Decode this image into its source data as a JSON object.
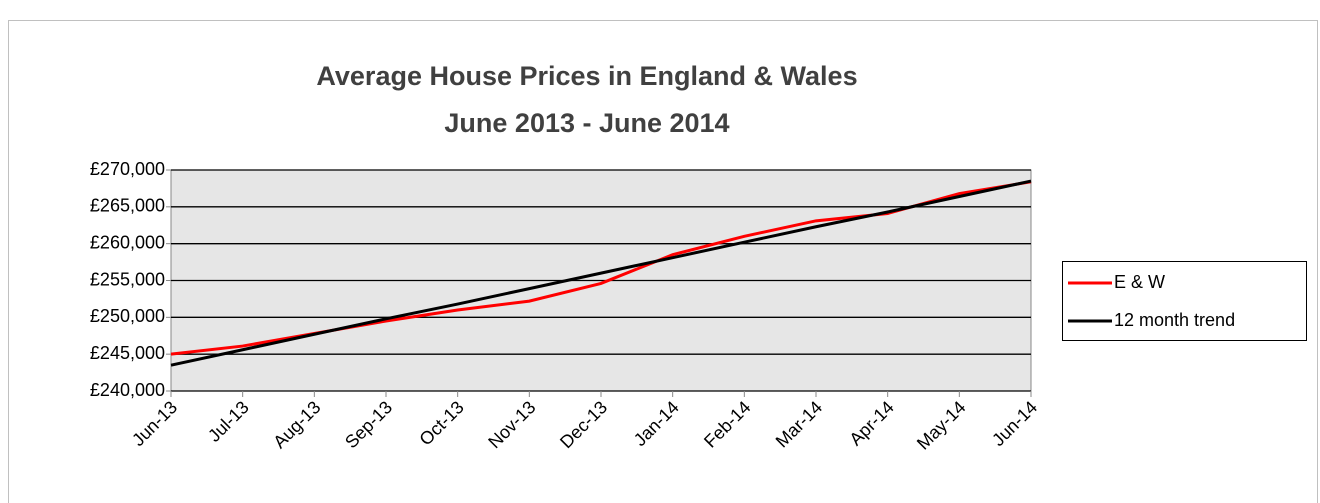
{
  "chart_data": {
    "type": "line",
    "title": "Average House Prices in England & Wales",
    "subtitle": "June 2013 - June 2014",
    "categories": [
      "Jun-13",
      "Jul-13",
      "Aug-13",
      "Sep-13",
      "Oct-13",
      "Nov-13",
      "Dec-13",
      "Jan-14",
      "Feb-14",
      "Mar-14",
      "Apr-14",
      "May-14",
      "Jun-14"
    ],
    "series": [
      {
        "name": "E & W",
        "color": "#ff0000",
        "values": [
          245000,
          246100,
          247800,
          249500,
          251000,
          252200,
          254600,
          258500,
          261000,
          263100,
          264100,
          266800,
          268400
        ]
      },
      {
        "name": "12 month trend",
        "color": "#000000",
        "values": [
          243500,
          245600,
          247700,
          249800,
          251800,
          253900,
          256000,
          258100,
          260200,
          262300,
          264300,
          266400,
          268500
        ]
      }
    ],
    "ylim": [
      240000,
      270000
    ],
    "yticks": [
      {
        "value": 240000,
        "label": "£240,000"
      },
      {
        "value": 245000,
        "label": "£245,000"
      },
      {
        "value": 250000,
        "label": "£250,000"
      },
      {
        "value": 255000,
        "label": "£255,000"
      },
      {
        "value": 260000,
        "label": "£260,000"
      },
      {
        "value": 265000,
        "label": "£265,000"
      },
      {
        "value": 270000,
        "label": "£270,000"
      }
    ],
    "grid": true,
    "legend": "right"
  }
}
